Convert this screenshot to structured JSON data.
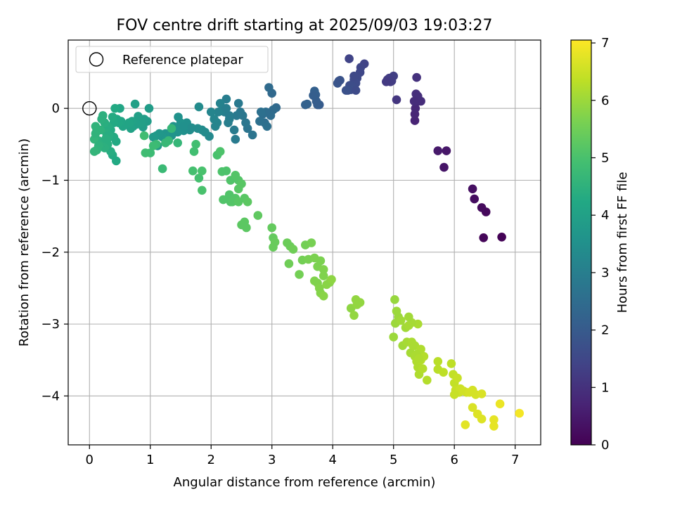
{
  "chart_data": {
    "type": "scatter",
    "title": "FOV centre drift starting at 2025/09/03 19:03:27",
    "xlabel": "Angular distance from reference (arcmin)",
    "ylabel": "Rotation from reference (arcmin)",
    "xlim": [
      -0.35,
      7.42
    ],
    "ylim": [
      -4.68,
      0.95
    ],
    "xticks": [
      0,
      1,
      2,
      3,
      4,
      5,
      6,
      7
    ],
    "yticks": [
      0,
      -1,
      -2,
      -3,
      -4
    ],
    "xtick_labels": [
      "0",
      "1",
      "2",
      "3",
      "4",
      "5",
      "6",
      "7"
    ],
    "ytick_labels": [
      "0",
      "−1",
      "−2",
      "−3",
      "−4"
    ],
    "grid": true,
    "legend": {
      "position": "top-left",
      "entries": [
        "Reference platepar"
      ]
    },
    "reference_point": {
      "name": "Reference platepar",
      "x": 0,
      "y": 0
    },
    "colorbar": {
      "label": "Hours from first FF file",
      "range": [
        0,
        7.05
      ],
      "ticks": [
        0,
        1,
        2,
        3,
        4,
        5,
        6,
        7
      ],
      "tick_labels": [
        "0",
        "1",
        "2",
        "3",
        "4",
        "5",
        "6",
        "7"
      ],
      "colormap": "viridis"
    },
    "points": [
      [
        6.78,
        -1.79,
        0.05
      ],
      [
        6.48,
        -1.8,
        0.1
      ],
      [
        6.52,
        -1.44,
        0.15
      ],
      [
        6.45,
        -1.38,
        0.2
      ],
      [
        6.33,
        -1.26,
        0.25
      ],
      [
        6.3,
        -1.12,
        0.3
      ],
      [
        5.83,
        -0.82,
        0.4
      ],
      [
        5.87,
        -0.59,
        0.45
      ],
      [
        5.73,
        -0.59,
        0.5
      ],
      [
        5.35,
        -0.17,
        0.7
      ],
      [
        5.35,
        -0.08,
        0.75
      ],
      [
        5.36,
        0.0,
        0.8
      ],
      [
        5.4,
        0.1,
        0.85
      ],
      [
        5.45,
        0.1,
        0.9
      ],
      [
        5.37,
        0.2,
        0.95
      ],
      [
        5.4,
        0.17,
        0.95
      ],
      [
        5.34,
        0.1,
        0.9
      ],
      [
        5.38,
        0.43,
        1.0
      ],
      [
        5.05,
        0.12,
        1.1
      ],
      [
        4.95,
        0.37,
        1.2
      ],
      [
        4.9,
        0.4,
        1.2
      ],
      [
        4.93,
        0.42,
        1.25
      ],
      [
        5.0,
        0.45,
        1.3
      ],
      [
        4.97,
        0.38,
        1.25
      ],
      [
        4.88,
        0.37,
        1.2
      ],
      [
        4.52,
        0.62,
        1.4
      ],
      [
        4.46,
        0.57,
        1.45
      ],
      [
        4.45,
        0.5,
        1.5
      ],
      [
        4.4,
        0.42,
        1.55
      ],
      [
        4.35,
        0.4,
        1.6
      ],
      [
        4.38,
        0.35,
        1.6
      ],
      [
        4.33,
        0.3,
        1.65
      ],
      [
        4.28,
        0.32,
        1.65
      ],
      [
        4.3,
        0.26,
        1.7
      ],
      [
        4.25,
        0.25,
        1.7
      ],
      [
        4.22,
        0.25,
        1.75
      ],
      [
        4.38,
        0.25,
        1.6
      ],
      [
        4.27,
        0.69,
        1.4
      ],
      [
        4.1,
        0.38,
        1.8
      ],
      [
        4.08,
        0.35,
        1.85
      ],
      [
        4.12,
        0.39,
        1.8
      ],
      [
        4.35,
        0.45,
        1.55
      ],
      [
        3.78,
        0.05,
        2.0
      ],
      [
        3.73,
        0.1,
        2.05
      ],
      [
        3.75,
        0.05,
        2.05
      ],
      [
        3.72,
        0.19,
        2.1
      ],
      [
        3.7,
        0.24,
        2.15
      ],
      [
        3.68,
        0.18,
        2.1
      ],
      [
        3.55,
        0.05,
        2.2
      ],
      [
        3.58,
        0.06,
        2.2
      ],
      [
        3.07,
        0.01,
        2.4
      ],
      [
        3.02,
        -0.02,
        2.45
      ],
      [
        3.0,
        0.21,
        2.4
      ],
      [
        2.95,
        0.29,
        2.45
      ],
      [
        2.98,
        -0.1,
        2.5
      ],
      [
        2.9,
        -0.05,
        2.5
      ],
      [
        2.85,
        -0.08,
        2.55
      ],
      [
        2.88,
        -0.2,
        2.55
      ],
      [
        2.92,
        -0.25,
        2.6
      ],
      [
        2.82,
        -0.05,
        2.6
      ],
      [
        2.8,
        -0.18,
        2.6
      ],
      [
        2.68,
        -0.37,
        2.7
      ],
      [
        2.6,
        -0.28,
        2.7
      ],
      [
        2.57,
        -0.2,
        2.75
      ],
      [
        2.52,
        -0.1,
        2.8
      ],
      [
        2.48,
        -0.05,
        2.8
      ],
      [
        2.45,
        0.07,
        2.85
      ],
      [
        2.42,
        -0.1,
        2.85
      ],
      [
        2.38,
        -0.3,
        2.9
      ],
      [
        2.4,
        -0.43,
        2.9
      ],
      [
        2.3,
        -0.15,
        2.95
      ],
      [
        2.28,
        -0.2,
        3.0
      ],
      [
        2.25,
        0.13,
        2.95
      ],
      [
        2.22,
        -0.05,
        3.0
      ],
      [
        2.2,
        0.0,
        3.05
      ],
      [
        2.18,
        -0.03,
        3.05
      ],
      [
        2.15,
        0.07,
        3.1
      ],
      [
        2.12,
        -0.05,
        3.1
      ],
      [
        2.1,
        -0.2,
        3.15
      ],
      [
        2.07,
        -0.25,
        3.15
      ],
      [
        2.05,
        -0.15,
        3.2
      ],
      [
        2.0,
        -0.05,
        3.2
      ],
      [
        2.3,
        -0.1,
        2.95
      ],
      [
        2.25,
        0.0,
        3.0
      ],
      [
        1.97,
        -0.39,
        3.3
      ],
      [
        1.9,
        -0.33,
        3.35
      ],
      [
        1.85,
        -0.3,
        3.35
      ],
      [
        1.8,
        0.02,
        3.35
      ],
      [
        1.78,
        -0.28,
        3.4
      ],
      [
        1.65,
        -0.3,
        3.45
      ],
      [
        1.62,
        -0.25,
        3.45
      ],
      [
        1.6,
        -0.2,
        3.5
      ],
      [
        1.55,
        -0.31,
        3.5
      ],
      [
        1.5,
        -0.2,
        3.55
      ],
      [
        1.48,
        -0.3,
        3.55
      ],
      [
        1.45,
        -0.33,
        3.55
      ],
      [
        1.38,
        -0.25,
        3.6
      ],
      [
        1.35,
        -0.38,
        3.6
      ],
      [
        1.3,
        -0.43,
        3.65
      ],
      [
        1.25,
        -0.35,
        3.65
      ],
      [
        1.2,
        -0.4,
        3.7
      ],
      [
        1.15,
        -0.35,
        3.7
      ],
      [
        1.12,
        -0.52,
        3.75
      ],
      [
        1.1,
        -0.38,
        3.75
      ],
      [
        1.05,
        -0.4,
        3.8
      ],
      [
        1.68,
        -0.27,
        3.4
      ],
      [
        1.55,
        -0.25,
        3.5
      ],
      [
        1.46,
        -0.12,
        3.55
      ],
      [
        0.98,
        0.0,
        3.85
      ],
      [
        0.95,
        -0.18,
        3.85
      ],
      [
        0.9,
        -0.15,
        3.9
      ],
      [
        0.88,
        -0.26,
        3.9
      ],
      [
        0.85,
        -0.2,
        3.95
      ],
      [
        0.8,
        -0.11,
        3.95
      ],
      [
        0.78,
        -0.22,
        4.0
      ],
      [
        0.75,
        0.06,
        4.0
      ],
      [
        0.72,
        -0.25,
        4.0
      ],
      [
        0.7,
        -0.18,
        4.05
      ],
      [
        0.68,
        -0.28,
        4.05
      ],
      [
        0.65,
        -0.2,
        4.1
      ],
      [
        0.55,
        -0.25,
        4.1
      ],
      [
        0.52,
        -0.18,
        4.15
      ],
      [
        0.5,
        0.0,
        4.15
      ],
      [
        0.48,
        -0.2,
        4.2
      ],
      [
        0.45,
        -0.15,
        4.2
      ],
      [
        0.42,
        0.0,
        4.25
      ],
      [
        0.4,
        -0.2,
        4.25
      ],
      [
        0.38,
        -0.12,
        4.3
      ],
      [
        0.35,
        -0.3,
        4.3
      ],
      [
        0.33,
        -0.4,
        4.35
      ],
      [
        0.3,
        -0.25,
        4.35
      ],
      [
        0.28,
        -0.35,
        4.4
      ],
      [
        0.25,
        -0.2,
        4.4
      ],
      [
        0.22,
        -0.1,
        4.45
      ],
      [
        0.2,
        -0.15,
        4.45
      ],
      [
        0.18,
        -0.3,
        4.5
      ],
      [
        0.15,
        -0.45,
        4.5
      ],
      [
        0.12,
        -0.3,
        4.55
      ],
      [
        0.1,
        -0.25,
        4.55
      ],
      [
        0.08,
        -0.43,
        4.6
      ],
      [
        0.38,
        -0.65,
        4.3
      ],
      [
        0.35,
        -0.6,
        4.35
      ],
      [
        0.3,
        -0.5,
        4.4
      ],
      [
        0.25,
        -0.55,
        4.45
      ],
      [
        0.2,
        -0.48,
        4.45
      ],
      [
        0.15,
        -0.52,
        4.5
      ],
      [
        0.12,
        -0.58,
        4.55
      ],
      [
        0.44,
        -0.73,
        4.25
      ],
      [
        0.44,
        -0.46,
        4.25
      ],
      [
        0.4,
        -0.4,
        4.3
      ],
      [
        0.32,
        -0.38,
        4.35
      ],
      [
        0.27,
        -0.42,
        4.4
      ],
      [
        0.1,
        -0.35,
        4.55
      ],
      [
        0.08,
        -0.6,
        4.6
      ],
      [
        1.45,
        -0.48,
        4.65
      ],
      [
        1.35,
        -0.28,
        4.65
      ],
      [
        1.3,
        -0.45,
        4.7
      ],
      [
        1.25,
        -0.48,
        4.7
      ],
      [
        1.2,
        -0.84,
        4.75
      ],
      [
        1.1,
        -0.5,
        4.75
      ],
      [
        1.05,
        -0.52,
        4.8
      ],
      [
        1.0,
        -0.62,
        4.8
      ],
      [
        0.92,
        -0.62,
        4.85
      ],
      [
        0.9,
        -0.38,
        4.85
      ],
      [
        1.75,
        -0.5,
        4.9
      ],
      [
        1.72,
        -0.6,
        4.9
      ],
      [
        1.7,
        -0.87,
        4.95
      ],
      [
        1.8,
        -0.97,
        4.95
      ],
      [
        1.85,
        -0.87,
        5.0
      ],
      [
        1.85,
        -1.14,
        5.0
      ],
      [
        2.1,
        -0.65,
        5.0
      ],
      [
        2.15,
        -0.6,
        5.05
      ],
      [
        2.18,
        -0.88,
        5.05
      ],
      [
        2.25,
        -0.87,
        5.05
      ],
      [
        2.2,
        -1.27,
        5.1
      ],
      [
        2.3,
        -1.2,
        5.1
      ],
      [
        2.32,
        -1.3,
        5.1
      ],
      [
        2.35,
        -1.3,
        5.15
      ],
      [
        2.32,
        -1.0,
        5.1
      ],
      [
        2.4,
        -0.93,
        5.15
      ],
      [
        2.45,
        -1.0,
        5.15
      ],
      [
        2.5,
        -1.05,
        5.2
      ],
      [
        2.55,
        -1.25,
        5.2
      ],
      [
        2.5,
        -1.62,
        5.25
      ],
      [
        2.55,
        -1.58,
        5.25
      ],
      [
        2.58,
        -1.66,
        5.25
      ],
      [
        2.4,
        -1.25,
        5.15
      ],
      [
        2.45,
        -1.3,
        5.2
      ],
      [
        2.6,
        -1.3,
        5.25
      ],
      [
        2.45,
        -1.12,
        5.2
      ],
      [
        2.77,
        -1.49,
        5.3
      ],
      [
        3.0,
        -1.66,
        5.35
      ],
      [
        3.02,
        -1.8,
        5.35
      ],
      [
        3.05,
        -1.86,
        5.4
      ],
      [
        3.02,
        -1.93,
        5.4
      ],
      [
        3.25,
        -1.87,
        5.45
      ],
      [
        3.3,
        -1.92,
        5.45
      ],
      [
        3.35,
        -1.96,
        5.5
      ],
      [
        3.28,
        -2.16,
        5.5
      ],
      [
        3.45,
        -2.31,
        5.55
      ],
      [
        3.5,
        -2.11,
        5.55
      ],
      [
        3.55,
        -1.9,
        5.55
      ],
      [
        3.6,
        -2.1,
        5.6
      ],
      [
        3.65,
        -1.87,
        5.6
      ],
      [
        3.7,
        -2.08,
        5.65
      ],
      [
        3.75,
        -2.2,
        5.65
      ],
      [
        3.8,
        -2.12,
        5.65
      ],
      [
        3.85,
        -2.24,
        5.7
      ],
      [
        3.85,
        -2.33,
        5.7
      ],
      [
        3.75,
        -2.43,
        5.7
      ],
      [
        3.78,
        -2.5,
        5.75
      ],
      [
        3.8,
        -2.57,
        5.75
      ],
      [
        3.85,
        -2.61,
        5.8
      ],
      [
        3.9,
        -2.45,
        5.8
      ],
      [
        3.95,
        -2.42,
        5.8
      ],
      [
        3.98,
        -2.38,
        5.85
      ],
      [
        4.3,
        -2.78,
        5.85
      ],
      [
        4.35,
        -2.88,
        5.9
      ],
      [
        4.38,
        -2.66,
        5.9
      ],
      [
        4.45,
        -2.7,
        5.9
      ],
      [
        4.4,
        -2.73,
        5.9
      ],
      [
        3.7,
        -2.4,
        5.7
      ],
      [
        5.02,
        -2.66,
        5.95
      ],
      [
        5.05,
        -2.82,
        6.0
      ],
      [
        5.03,
        -2.99,
        6.0
      ],
      [
        5.0,
        -3.18,
        6.0
      ],
      [
        5.08,
        -2.9,
        6.0
      ],
      [
        5.12,
        -2.95,
        6.05
      ],
      [
        5.15,
        -3.3,
        6.05
      ],
      [
        5.2,
        -3.05,
        6.05
      ],
      [
        5.22,
        -3.25,
        6.1
      ],
      [
        5.25,
        -3.02,
        6.1
      ],
      [
        5.28,
        -3.4,
        6.1
      ],
      [
        5.3,
        -3.25,
        6.15
      ],
      [
        5.32,
        -3.3,
        6.15
      ],
      [
        5.35,
        -3.45,
        6.15
      ],
      [
        5.38,
        -3.52,
        6.2
      ],
      [
        5.4,
        -3.6,
        6.2
      ],
      [
        5.42,
        -3.7,
        6.2
      ],
      [
        5.45,
        -3.5,
        6.25
      ],
      [
        5.48,
        -3.62,
        6.25
      ],
      [
        5.5,
        -3.45,
        6.25
      ],
      [
        5.4,
        -3.0,
        6.15
      ],
      [
        5.3,
        -2.98,
        6.1
      ],
      [
        5.35,
        -3.3,
        6.15
      ],
      [
        5.45,
        -3.35,
        6.2
      ],
      [
        5.55,
        -3.78,
        6.25
      ],
      [
        5.25,
        -2.9,
        6.05
      ],
      [
        5.38,
        -3.42,
        6.15
      ],
      [
        5.42,
        -3.48,
        6.2
      ],
      [
        5.73,
        -3.52,
        6.3
      ],
      [
        5.73,
        -3.63,
        6.3
      ],
      [
        5.82,
        -3.67,
        6.35
      ],
      [
        5.95,
        -3.55,
        6.35
      ],
      [
        5.98,
        -3.7,
        6.4
      ],
      [
        6.0,
        -3.82,
        6.4
      ],
      [
        6.02,
        -3.92,
        6.45
      ],
      [
        6.05,
        -3.75,
        6.45
      ],
      [
        6.08,
        -3.95,
        6.5
      ],
      [
        6.1,
        -3.9,
        6.5
      ],
      [
        6.15,
        -3.93,
        6.55
      ],
      [
        6.2,
        -3.95,
        6.55
      ],
      [
        6.25,
        -3.95,
        6.6
      ],
      [
        6.3,
        -3.92,
        6.6
      ],
      [
        6.35,
        -3.98,
        6.6
      ],
      [
        6.45,
        -3.97,
        6.65
      ],
      [
        6.3,
        -4.16,
        6.65
      ],
      [
        6.38,
        -4.25,
        6.7
      ],
      [
        6.45,
        -4.32,
        6.7
      ],
      [
        6.18,
        -4.4,
        6.75
      ],
      [
        6.65,
        -4.33,
        6.8
      ],
      [
        6.65,
        -4.42,
        6.8
      ],
      [
        6.75,
        -4.11,
        6.85
      ],
      [
        7.07,
        -4.24,
        6.95
      ],
      [
        6.0,
        -3.98,
        6.45
      ]
    ]
  }
}
